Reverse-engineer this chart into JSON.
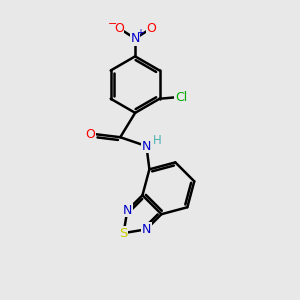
{
  "background_color": "#e8e8e8",
  "bond_color": "#000000",
  "bond_width": 1.8,
  "atom_colors": {
    "C": "#000000",
    "N": "#0000cc",
    "O": "#ff0000",
    "S": "#cccc00",
    "Cl": "#00aa00",
    "H": "#4db3b3"
  },
  "figsize": [
    3.0,
    3.0
  ],
  "dpi": 100
}
